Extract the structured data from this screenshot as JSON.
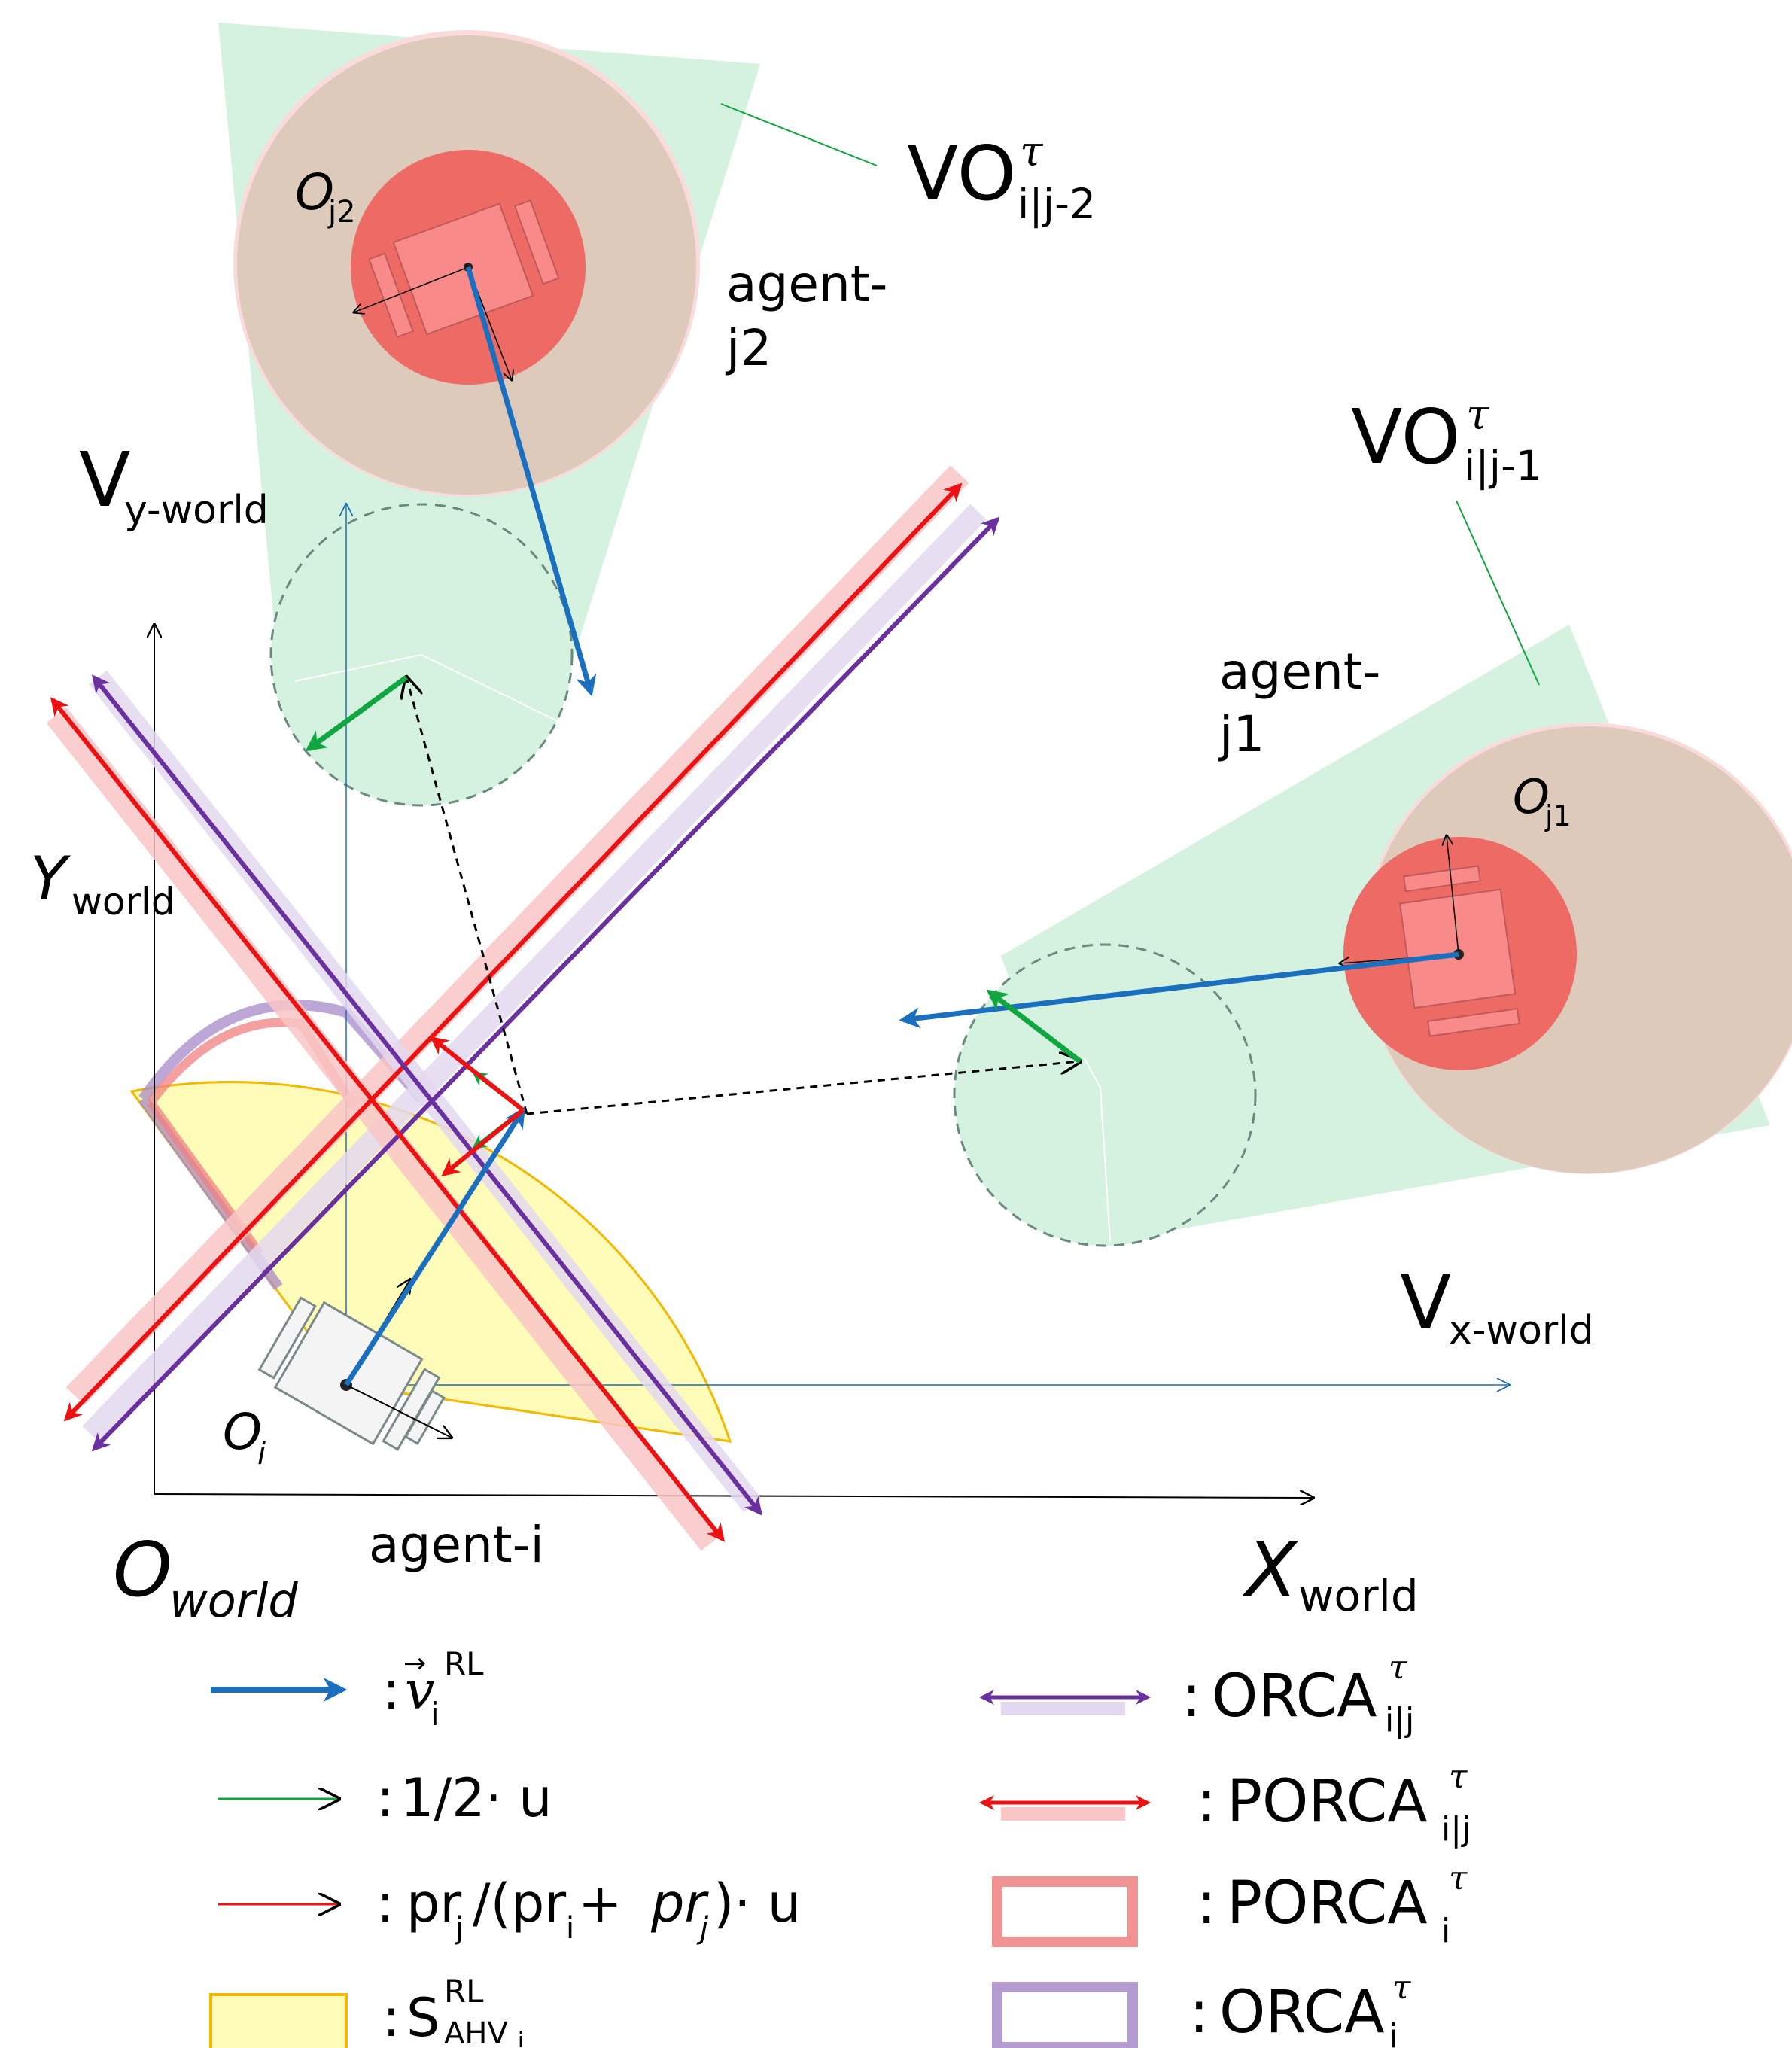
{
  "diagram": {
    "agents": {
      "j2": {
        "name_line1": "agent-",
        "name_line2": "j2",
        "origin_main": "O",
        "origin_sub": "j2"
      },
      "j1": {
        "name_line1": "agent-",
        "name_line2": "j1",
        "origin_main": "O",
        "origin_sub": "j1"
      },
      "i": {
        "name": "agent-i",
        "origin_main": "O",
        "origin_sub": "i"
      }
    },
    "vo_labels": {
      "j2": {
        "main": "VO",
        "sup": "τ",
        "sub": "i|j-2"
      },
      "j1": {
        "main": "VO",
        "sup": "τ",
        "sub": "i|j-1"
      }
    },
    "axes": {
      "vy": {
        "main": "V",
        "sub": "y-world"
      },
      "vx": {
        "main": "V",
        "sub": "x-world"
      },
      "y": {
        "main": "Y",
        "sub": "world"
      },
      "x": {
        "main": "X",
        "sub": "world"
      },
      "origin": {
        "main": "O",
        "sub": "world"
      }
    }
  },
  "legend": {
    "left": [
      {
        "id": "v_rl",
        "colon": ":",
        "text": "v",
        "sup": "RL",
        "sub": "i",
        "color": "#1b6fbf"
      },
      {
        "id": "half_u",
        "colon": ":",
        "text": "1/2· u",
        "color": "#10a640"
      },
      {
        "id": "pr_u",
        "colon": ":",
        "text_a": "pr",
        "sub_a": "j",
        "text_b": "/(pr",
        "sub_b": "i",
        "text_c": " + ",
        "text_d": "pr",
        "sub_d": "j",
        "text_e": ")· u",
        "color": "#ee1111"
      },
      {
        "id": "s_ahv",
        "colon": ":",
        "text": "S",
        "sup": "RL",
        "sub": "AHV",
        "subsub": "i",
        "color": "#fefcb8"
      }
    ],
    "right": [
      {
        "id": "orca_ij",
        "colon": ":",
        "text": "ORCA",
        "sup": "τ",
        "sub": "i|j",
        "color": "#6a30a0"
      },
      {
        "id": "porca_ij",
        "colon": ":",
        "text": "PORCA",
        "sup": "τ",
        "sub": "i|j",
        "color": "#ee1111"
      },
      {
        "id": "porca_i",
        "colon": ":",
        "text": "PORCA",
        "sup": "τ",
        "sub": "i",
        "color": "#f08080"
      },
      {
        "id": "orca_i",
        "colon": ":",
        "text": "ORCA",
        "sup": "τ",
        "sub": "i",
        "color": "#a78ac8"
      }
    ]
  },
  "colors": {
    "vo_green": "#d5f2e1",
    "agent_ring": "#ddcabb",
    "agent_core": "#ee6a64",
    "velocity_blue": "#1b6fbf",
    "u_green": "#10a640",
    "porca_red": "#ee1111",
    "orca_purple": "#6a30a0",
    "yellow_fill": "#fefcb8",
    "yellow_stroke": "#f5b800"
  }
}
